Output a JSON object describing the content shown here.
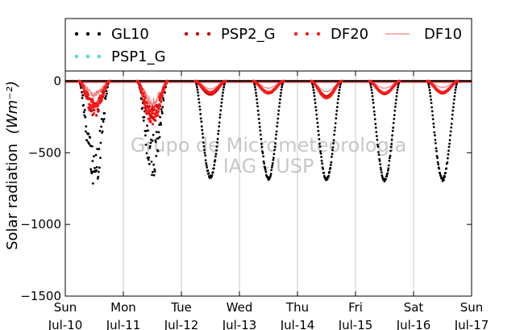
{
  "chart_data": {
    "type": "line",
    "title": "",
    "ylabel": "Solar radiation",
    "ylabel_unit": "(Wm⁻²)",
    "ylim": [
      -1500,
      70
    ],
    "xlim": [
      0,
      7
    ],
    "grid": "vertical",
    "legend_position": "top",
    "watermark": [
      "Grupo de Micrometeorologia",
      "IAG - USP"
    ],
    "y_ticks": [
      0,
      -500,
      -1000,
      -1500
    ],
    "x_ticks": [
      {
        "day": "Sun",
        "date": "Jul-10"
      },
      {
        "day": "Mon",
        "date": "Jul-11"
      },
      {
        "day": "Tue",
        "date": "Jul-12"
      },
      {
        "day": "Wed",
        "date": "Jul-13"
      },
      {
        "day": "Thu",
        "date": "Jul-14"
      },
      {
        "day": "Fri",
        "date": "Jul-15"
      },
      {
        "day": "Sat",
        "date": "Jul-16"
      },
      {
        "day": "Sun",
        "date": "Jul-17"
      }
    ],
    "series": [
      {
        "name": "GL10",
        "color": "#000000",
        "style": "dotted",
        "daily_min": [
          -780,
          -680,
          -680,
          -690,
          -695,
          -700,
          -700
        ]
      },
      {
        "name": "PSP2_G",
        "color": "#cc0000",
        "style": "dotted",
        "daily_min": [
          -250,
          -330,
          -95,
          -85,
          -110,
          -90,
          -85
        ]
      },
      {
        "name": "DF20",
        "color": "#ff1a1a",
        "style": "dotted",
        "daily_min": [
          -230,
          -320,
          -80,
          -80,
          -120,
          -85,
          -80
        ]
      },
      {
        "name": "DF10",
        "color": "#f08080",
        "style": "solid",
        "daily_min": [
          -120,
          -190,
          -55,
          -50,
          -75,
          -50,
          -45
        ]
      },
      {
        "name": "PSP1_G",
        "color": "#40e0d0",
        "style": "dotted",
        "daily_min": [
          0,
          0,
          0,
          0,
          0,
          0,
          0
        ]
      }
    ]
  }
}
